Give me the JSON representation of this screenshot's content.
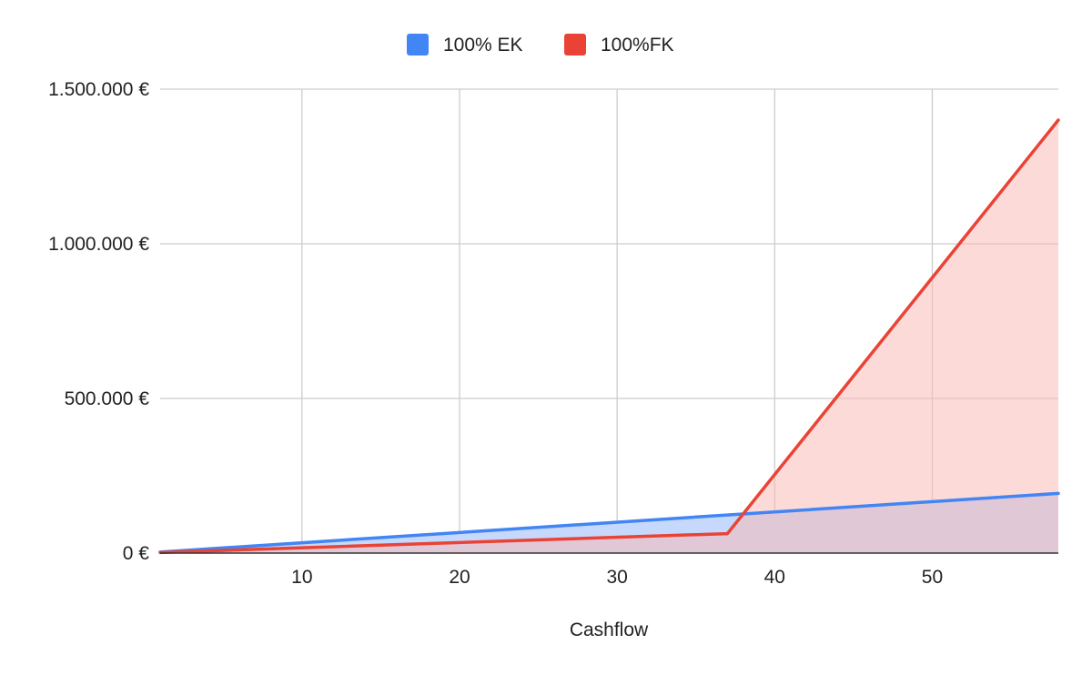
{
  "chart_data": {
    "type": "area",
    "title": "",
    "xlabel": "Cashflow",
    "ylabel": "",
    "xlim": [
      1,
      58
    ],
    "ylim": [
      0,
      1500000
    ],
    "x_ticks": [
      10,
      20,
      30,
      40,
      50
    ],
    "y_ticks": [
      {
        "value": 0,
        "label": "0 €"
      },
      {
        "value": 500000,
        "label": "500.000 €"
      },
      {
        "value": 1000000,
        "label": "1.000.000 €"
      },
      {
        "value": 1500000,
        "label": "1.500.000 €"
      }
    ],
    "grid": true,
    "legend_position": "top-center",
    "series": [
      {
        "name": "100% EK",
        "color": "#4285f4",
        "fill_color": "#c6d8fc",
        "points": [
          [
            1,
            3500
          ],
          [
            58,
            193000
          ]
        ]
      },
      {
        "name": "100%FK",
        "color": "#ea4335",
        "fill_color": "#f7bcb8",
        "points": [
          [
            1,
            2000
          ],
          [
            37,
            63000
          ],
          [
            58,
            1400000
          ]
        ]
      }
    ]
  }
}
